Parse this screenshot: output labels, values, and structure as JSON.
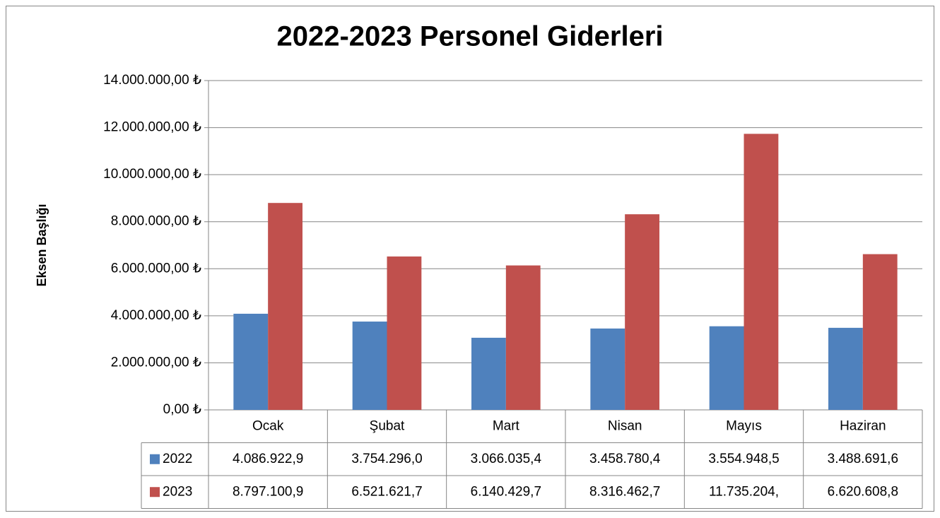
{
  "chart_data": {
    "type": "bar",
    "title": "2022-2023 Personel Giderleri",
    "y_label": "Eksen Başlığı",
    "categories": [
      "Ocak",
      "Şubat",
      "Mart",
      "Nisan",
      "Mayıs",
      "Haziran"
    ],
    "series": [
      {
        "name": "2022",
        "color": "#4f81bd",
        "values": [
          4086922.9,
          3754296.0,
          3066035.4,
          3458780.4,
          3554948.5,
          3488691.6
        ],
        "value_labels": [
          "4.086.922,9",
          "3.754.296,0",
          "3.066.035,4",
          "3.458.780,4",
          "3.554.948,5",
          "3.488.691,6"
        ]
      },
      {
        "name": "2023",
        "color": "#c0504d",
        "values": [
          8797100.9,
          6521621.7,
          6140429.7,
          8316462.7,
          11735204,
          6620608.8
        ],
        "value_labels": [
          "8.797.100,9",
          "6.521.621,7",
          "6.140.429,7",
          "8.316.462,7",
          "11.735.204,",
          "6.620.608,8"
        ]
      }
    ],
    "ylim": [
      0,
      14000000
    ],
    "yticks": [
      {
        "value": 0,
        "label": "0,00 ₺"
      },
      {
        "value": 2000000,
        "label": "2.000.000,00 ₺"
      },
      {
        "value": 4000000,
        "label": "4.000.000,00 ₺"
      },
      {
        "value": 6000000,
        "label": "6.000.000,00 ₺"
      },
      {
        "value": 8000000,
        "label": "8.000.000,00 ₺"
      },
      {
        "value": 10000000,
        "label": "10.000.000,00 ₺"
      },
      {
        "value": 12000000,
        "label": "12.000.000,00 ₺"
      },
      {
        "value": 14000000,
        "label": "14.000.000,00 ₺"
      }
    ],
    "grid": true
  }
}
